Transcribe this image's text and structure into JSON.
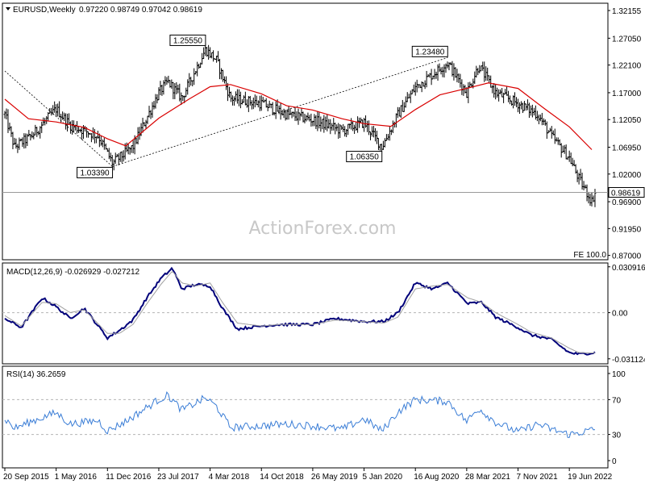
{
  "header": {
    "symbol_timeframe": "EURUSD,Weekly",
    "ohlc": "0.97220 0.98749 0.97042 0.98619"
  },
  "watermark": "ActionForex.com",
  "fe_label": "FE 100.0",
  "colors": {
    "candle": "#000000",
    "ma": "#d90000",
    "trendline": "#000000",
    "macd_main": "#00007a",
    "macd_signal": "#a0a0a0",
    "rsi": "#3a7dd6",
    "grid_dash": "#b4b4b4",
    "frame": "#000000"
  },
  "chart_data": [
    {
      "type": "candlestick",
      "panel": "price",
      "title": "EURUSD,Weekly",
      "yticks": [
        "1.32155",
        "1.27050",
        "1.22100",
        "1.17000",
        "1.12050",
        "1.06950",
        "1.02000",
        "0.96900",
        "0.91950",
        "0.87000"
      ],
      "ylim": [
        0.862,
        1.335
      ],
      "last_price": "0.98619",
      "annotations": [
        {
          "text": "1.03390",
          "date": "2017-01-02",
          "value": 1.0339
        },
        {
          "text": "1.25550",
          "date": "2018-02-12",
          "value": 1.2555
        },
        {
          "text": "1.06350",
          "date": "2020-03-23",
          "value": 1.0635
        },
        {
          "text": "1.23480",
          "date": "2021-01-04",
          "value": 1.2348
        }
      ],
      "moving_average": {
        "points": [
          [
            "2015-09-20",
            1.158
          ],
          [
            "2016-01-01",
            1.122
          ],
          [
            "2016-05-01",
            1.116
          ],
          [
            "2016-09-01",
            1.106
          ],
          [
            "2016-12-11",
            1.085
          ],
          [
            "2017-03-01",
            1.072
          ],
          [
            "2017-07-23",
            1.123
          ],
          [
            "2017-12-01",
            1.158
          ],
          [
            "2018-03-04",
            1.181
          ],
          [
            "2018-06-01",
            1.185
          ],
          [
            "2018-10-14",
            1.168
          ],
          [
            "2019-02-01",
            1.146
          ],
          [
            "2019-05-26",
            1.138
          ],
          [
            "2019-10-01",
            1.122
          ],
          [
            "2020-01-05",
            1.113
          ],
          [
            "2020-05-01",
            1.108
          ],
          [
            "2020-08-16",
            1.139
          ],
          [
            "2020-12-01",
            1.166
          ],
          [
            "2021-03-28",
            1.178
          ],
          [
            "2021-07-01",
            1.188
          ],
          [
            "2021-11-07",
            1.178
          ],
          [
            "2022-03-01",
            1.141
          ],
          [
            "2022-06-19",
            1.107
          ],
          [
            "2022-09-25",
            1.065
          ]
        ]
      },
      "trendlines": [
        {
          "from": [
            "2015-09-20",
            1.21
          ],
          "to": [
            "2017-01-02",
            1.0339
          ]
        },
        {
          "from": [
            "2017-01-02",
            1.0339
          ],
          "to": [
            "2021-01-04",
            1.2348
          ]
        }
      ],
      "close_keypoints": [
        [
          "2015-09-20",
          1.13
        ],
        [
          "2015-11-01",
          1.07
        ],
        [
          "2016-01-15",
          1.09
        ],
        [
          "2016-05-01",
          1.14
        ],
        [
          "2016-07-01",
          1.11
        ],
        [
          "2016-11-01",
          1.09
        ],
        [
          "2017-01-02",
          1.04
        ],
        [
          "2017-04-01",
          1.07
        ],
        [
          "2017-07-23",
          1.17
        ],
        [
          "2017-09-01",
          1.19
        ],
        [
          "2017-11-01",
          1.16
        ],
        [
          "2018-02-12",
          1.25
        ],
        [
          "2018-04-01",
          1.23
        ],
        [
          "2018-06-01",
          1.16
        ],
        [
          "2018-10-14",
          1.15
        ],
        [
          "2019-02-01",
          1.13
        ],
        [
          "2019-05-26",
          1.12
        ],
        [
          "2019-10-01",
          1.1
        ],
        [
          "2020-01-05",
          1.115
        ],
        [
          "2020-03-23",
          1.07
        ],
        [
          "2020-06-01",
          1.13
        ],
        [
          "2020-08-16",
          1.18
        ],
        [
          "2021-01-04",
          1.225
        ],
        [
          "2021-03-28",
          1.17
        ],
        [
          "2021-05-20",
          1.22
        ],
        [
          "2021-08-01",
          1.17
        ],
        [
          "2021-11-07",
          1.15
        ],
        [
          "2022-02-01",
          1.13
        ],
        [
          "2022-04-01",
          1.09
        ],
        [
          "2022-06-19",
          1.05
        ],
        [
          "2022-08-01",
          1.01
        ],
        [
          "2022-09-25",
          0.97
        ],
        [
          "2022-10-09",
          0.986
        ]
      ]
    },
    {
      "type": "line",
      "panel": "macd",
      "title": "MACD(12,26,9) -0.026929 -0.027212",
      "yticks": [
        "0.030916",
        "0.00",
        "-0.031124"
      ],
      "ylim": [
        -0.0345,
        0.0335
      ],
      "series": [
        {
          "name": "MACD",
          "points": [
            [
              "2015-09-20",
              -0.004
            ],
            [
              "2015-12-01",
              -0.01
            ],
            [
              "2016-03-01",
              0.01
            ],
            [
              "2016-05-01",
              0.004
            ],
            [
              "2016-07-01",
              -0.004
            ],
            [
              "2016-09-01",
              0.003
            ],
            [
              "2016-12-11",
              -0.017
            ],
            [
              "2017-02-01",
              -0.012
            ],
            [
              "2017-04-01",
              -0.005
            ],
            [
              "2017-06-01",
              0.01
            ],
            [
              "2017-08-01",
              0.023
            ],
            [
              "2017-09-20",
              0.03
            ],
            [
              "2017-11-01",
              0.016
            ],
            [
              "2018-01-01",
              0.019
            ],
            [
              "2018-03-04",
              0.018
            ],
            [
              "2018-05-01",
              0.002
            ],
            [
              "2018-07-01",
              -0.011
            ],
            [
              "2018-10-14",
              -0.009
            ],
            [
              "2019-01-01",
              -0.008
            ],
            [
              "2019-05-26",
              -0.008
            ],
            [
              "2019-09-01",
              -0.004
            ],
            [
              "2020-01-05",
              -0.006
            ],
            [
              "2020-04-01",
              -0.006
            ],
            [
              "2020-06-01",
              0.0
            ],
            [
              "2020-08-16",
              0.02
            ],
            [
              "2020-11-01",
              0.016
            ],
            [
              "2021-01-04",
              0.02
            ],
            [
              "2021-04-01",
              0.006
            ],
            [
              "2021-06-01",
              0.007
            ],
            [
              "2021-08-01",
              -0.003
            ],
            [
              "2021-11-07",
              -0.01
            ],
            [
              "2022-01-01",
              -0.015
            ],
            [
              "2022-04-01",
              -0.018
            ],
            [
              "2022-06-19",
              -0.027
            ],
            [
              "2022-08-01",
              -0.028
            ],
            [
              "2022-10-09",
              -0.0269
            ]
          ]
        },
        {
          "name": "Signal",
          "points": [
            [
              "2015-09-20",
              -0.002
            ],
            [
              "2015-12-01",
              -0.009
            ],
            [
              "2016-03-01",
              0.007
            ],
            [
              "2016-05-01",
              0.006
            ],
            [
              "2016-07-01",
              0.0
            ],
            [
              "2016-09-01",
              0.002
            ],
            [
              "2016-12-11",
              -0.014
            ],
            [
              "2017-02-01",
              -0.014
            ],
            [
              "2017-04-01",
              -0.008
            ],
            [
              "2017-06-01",
              0.006
            ],
            [
              "2017-08-01",
              0.019
            ],
            [
              "2017-09-20",
              0.028
            ],
            [
              "2017-11-01",
              0.02
            ],
            [
              "2018-01-01",
              0.018
            ],
            [
              "2018-03-04",
              0.02
            ],
            [
              "2018-05-01",
              0.006
            ],
            [
              "2018-07-01",
              -0.007
            ],
            [
              "2018-10-14",
              -0.009
            ],
            [
              "2019-01-01",
              -0.008
            ],
            [
              "2019-05-26",
              -0.008
            ],
            [
              "2019-09-01",
              -0.005
            ],
            [
              "2020-01-05",
              -0.006
            ],
            [
              "2020-04-01",
              -0.007
            ],
            [
              "2020-06-01",
              -0.003
            ],
            [
              "2020-08-16",
              0.016
            ],
            [
              "2020-11-01",
              0.018
            ],
            [
              "2021-01-04",
              0.019
            ],
            [
              "2021-04-01",
              0.01
            ],
            [
              "2021-06-01",
              0.007
            ],
            [
              "2021-08-01",
              0.0
            ],
            [
              "2021-11-07",
              -0.008
            ],
            [
              "2022-01-01",
              -0.013
            ],
            [
              "2022-04-01",
              -0.017
            ],
            [
              "2022-06-19",
              -0.024
            ],
            [
              "2022-08-01",
              -0.027
            ],
            [
              "2022-10-09",
              -0.0272
            ]
          ]
        }
      ]
    },
    {
      "type": "line",
      "panel": "rsi",
      "title": "RSI(14) 36.2659",
      "yticks": [
        "100",
        "70",
        "30",
        "0"
      ],
      "ylim": [
        0,
        100
      ],
      "levels": [
        70,
        30
      ],
      "series": [
        {
          "name": "RSI",
          "points": [
            [
              "2015-09-20",
              48
            ],
            [
              "2015-11-01",
              37
            ],
            [
              "2016-01-15",
              45
            ],
            [
              "2016-05-01",
              55
            ],
            [
              "2016-07-01",
              42
            ],
            [
              "2016-11-01",
              46
            ],
            [
              "2016-12-11",
              34
            ],
            [
              "2017-03-01",
              45
            ],
            [
              "2017-07-23",
              70
            ],
            [
              "2017-09-01",
              75
            ],
            [
              "2017-11-01",
              58
            ],
            [
              "2018-02-12",
              72
            ],
            [
              "2018-04-01",
              62
            ],
            [
              "2018-06-01",
              38
            ],
            [
              "2018-10-14",
              40
            ],
            [
              "2019-02-01",
              42
            ],
            [
              "2019-05-26",
              40
            ],
            [
              "2019-10-01",
              36
            ],
            [
              "2020-01-05",
              48
            ],
            [
              "2020-03-23",
              34
            ],
            [
              "2020-06-01",
              56
            ],
            [
              "2020-08-16",
              70
            ],
            [
              "2021-01-04",
              68
            ],
            [
              "2021-03-28",
              45
            ],
            [
              "2021-05-20",
              60
            ],
            [
              "2021-08-01",
              44
            ],
            [
              "2021-11-07",
              33
            ],
            [
              "2022-02-01",
              42
            ],
            [
              "2022-04-01",
              36
            ],
            [
              "2022-06-19",
              30
            ],
            [
              "2022-08-01",
              32
            ],
            [
              "2022-10-09",
              36
            ]
          ]
        }
      ]
    }
  ],
  "x_axis": {
    "ticks": [
      {
        "label": "20 Sep 2015",
        "date": "2015-09-20"
      },
      {
        "label": "1 May 2016",
        "date": "2016-05-01"
      },
      {
        "label": "11 Dec 2016",
        "date": "2016-12-11"
      },
      {
        "label": "23 Jul 2017",
        "date": "2017-07-23"
      },
      {
        "label": "4 Mar 2018",
        "date": "2018-03-04"
      },
      {
        "label": "14 Oct 2018",
        "date": "2018-10-14"
      },
      {
        "label": "26 May 2019",
        "date": "2019-05-26"
      },
      {
        "label": "5 Jan 2020",
        "date": "2020-01-05"
      },
      {
        "label": "16 Aug 2020",
        "date": "2020-08-16"
      },
      {
        "label": "28 Mar 2021",
        "date": "2021-03-28"
      },
      {
        "label": "7 Nov 2021",
        "date": "2021-11-07"
      },
      {
        "label": "19 Jun 2022",
        "date": "2022-06-19"
      }
    ],
    "last_date": "2022-10-09"
  }
}
